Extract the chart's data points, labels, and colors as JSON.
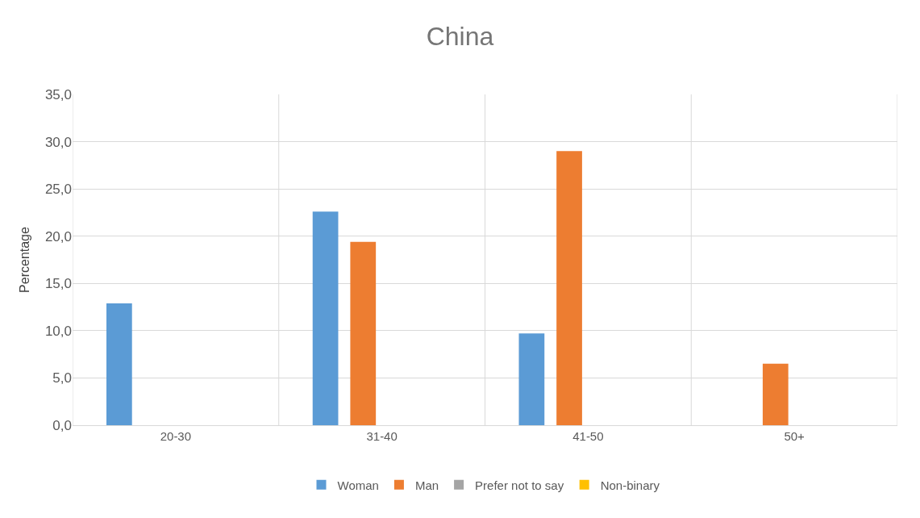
{
  "chart_data": {
    "type": "bar",
    "title": "China",
    "ylabel": "Percentage",
    "categories": [
      "20-30",
      "31-40",
      "41-50",
      "50+"
    ],
    "series": [
      {
        "name": "Woman",
        "color": "#5b9bd5",
        "values": [
          12.9,
          22.6,
          9.7,
          0
        ]
      },
      {
        "name": "Man",
        "color": "#ed7d31",
        "values": [
          0,
          19.4,
          29.0,
          6.5
        ]
      },
      {
        "name": "Prefer not to say",
        "color": "#a5a5a5",
        "values": [
          0,
          0,
          0,
          0
        ]
      },
      {
        "name": "Non-binary",
        "color": "#ffc000",
        "values": [
          0,
          0,
          0,
          0
        ]
      }
    ],
    "ylim": [
      0,
      35
    ],
    "yticks": [
      {
        "value": 0,
        "label": "0,0"
      },
      {
        "value": 5,
        "label": "5,0"
      },
      {
        "value": 10,
        "label": "10,0"
      },
      {
        "value": 15,
        "label": "15,0"
      },
      {
        "value": 20,
        "label": "20,0"
      },
      {
        "value": 25,
        "label": "25,0"
      },
      {
        "value": 30,
        "label": "30,0"
      },
      {
        "value": 35,
        "label": "35,0"
      }
    ],
    "grid": true,
    "legend": "bottom"
  }
}
